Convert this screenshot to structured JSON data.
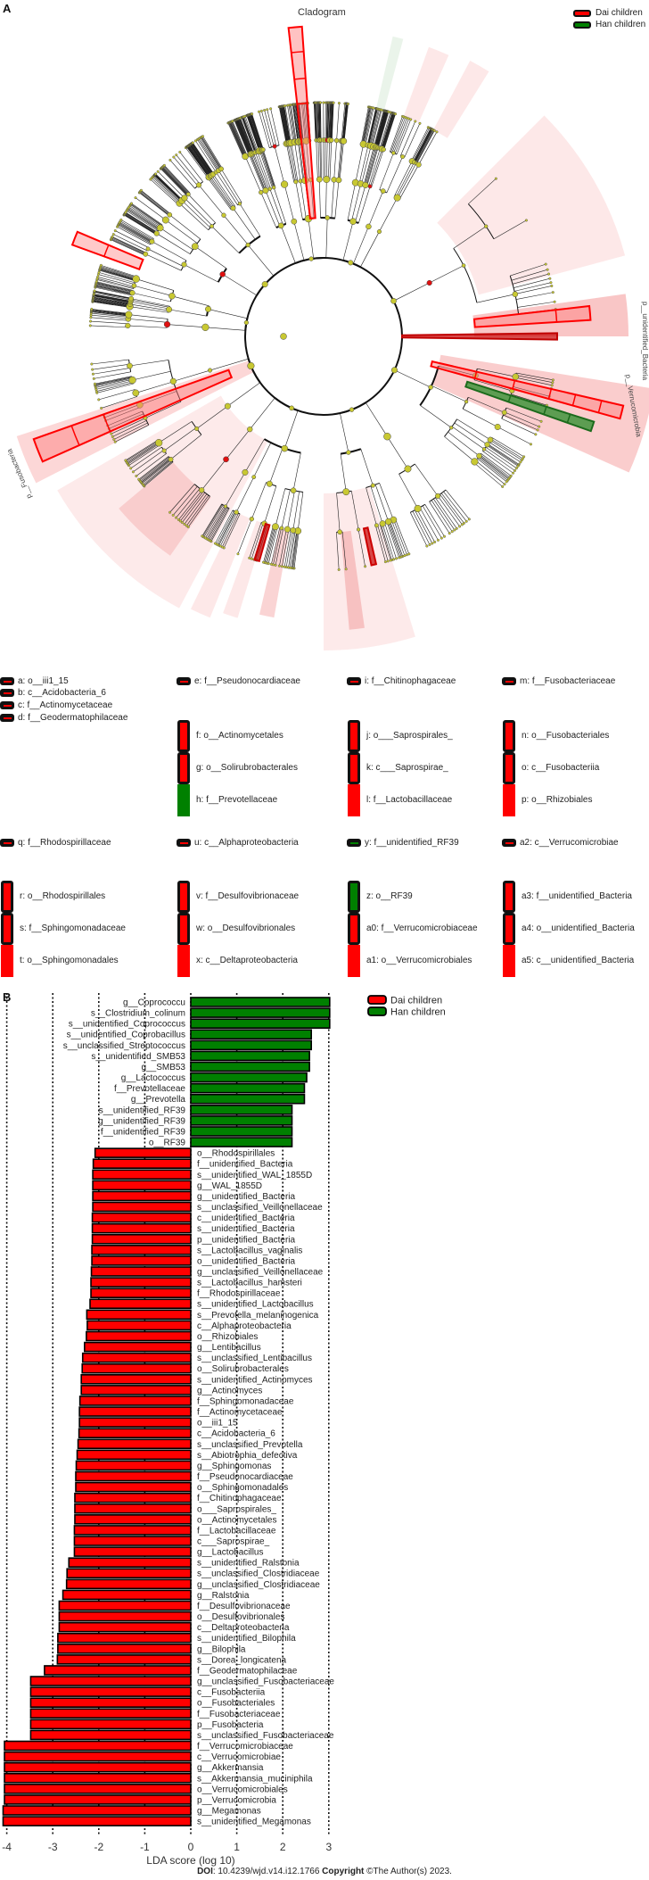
{
  "panel_a": {
    "letter": "A",
    "title": "Cladogram",
    "legend": [
      {
        "name": "Dai children",
        "color": "#ff0000"
      },
      {
        "name": "Han children",
        "color": "#008000"
      }
    ],
    "clade_labels": [
      "p__unidentified_Bacteria",
      "p__Verrucomicrobia",
      "p__Fusobacteria"
    ],
    "node_color": "#c8c832",
    "key": [
      {
        "key": "a",
        "label": "a: o__iii1_15",
        "color": "#ff0000",
        "style": "small"
      },
      {
        "key": "b",
        "label": "b: c__Acidobacteria_6",
        "color": "#ff0000",
        "style": "small"
      },
      {
        "key": "c",
        "label": "c: f__Actinomycetaceae",
        "color": "#ff0000",
        "style": "small"
      },
      {
        "key": "d",
        "label": "d: f__Geodermatophilaceae",
        "color": "#ff0000",
        "style": "small"
      },
      {
        "key": "e",
        "label": "e: f__Pseudonocardiaceae",
        "color": "#ff0000",
        "style": "small"
      },
      {
        "key": "f",
        "label": "f: o__Actinomycetales",
        "color": "#ff0000",
        "style": "bordered"
      },
      {
        "key": "g",
        "label": "g: o__Solirubrobacterales",
        "color": "#ff0000",
        "style": "bordered"
      },
      {
        "key": "h",
        "label": "h: f__Prevotellaceae",
        "color": "#008000",
        "style": "plain"
      },
      {
        "key": "i",
        "label": "i: f__Chitinophagaceae",
        "color": "#ff0000",
        "style": "small"
      },
      {
        "key": "j",
        "label": "j: o___Saprospirales_",
        "color": "#ff0000",
        "style": "bordered"
      },
      {
        "key": "k",
        "label": "k: c___Saprospirae_",
        "color": "#ff0000",
        "style": "bordered"
      },
      {
        "key": "l",
        "label": "l: f__Lactobacillaceae",
        "color": "#ff0000",
        "style": "plain"
      },
      {
        "key": "m",
        "label": "m: f__Fusobacteriaceae",
        "color": "#ff0000",
        "style": "small"
      },
      {
        "key": "n",
        "label": "n: o__Fusobacteriales",
        "color": "#ff0000",
        "style": "bordered"
      },
      {
        "key": "o",
        "label": "o: c__Fusobacteriia",
        "color": "#ff0000",
        "style": "bordered"
      },
      {
        "key": "p",
        "label": "p: o__Rhizobiales",
        "color": "#ff0000",
        "style": "plain"
      },
      {
        "key": "q",
        "label": "q: f__Rhodospirillaceae",
        "color": "#ff0000",
        "style": "small"
      },
      {
        "key": "r",
        "label": "r: o__Rhodospirillales",
        "color": "#ff0000",
        "style": "bordered"
      },
      {
        "key": "s",
        "label": "s: f__Sphingomonadaceae",
        "color": "#ff0000",
        "style": "bordered"
      },
      {
        "key": "t",
        "label": "t: o__Sphingomonadales",
        "color": "#ff0000",
        "style": "plain"
      },
      {
        "key": "u",
        "label": "u: c__Alphaproteobacteria",
        "color": "#ff0000",
        "style": "small"
      },
      {
        "key": "v",
        "label": "v: f__Desulfovibrionaceae",
        "color": "#ff0000",
        "style": "bordered"
      },
      {
        "key": "w",
        "label": "w: o__Desulfovibrionales",
        "color": "#ff0000",
        "style": "bordered"
      },
      {
        "key": "x",
        "label": "x: c__Deltaproteobacteria",
        "color": "#ff0000",
        "style": "plain"
      },
      {
        "key": "y",
        "label": "y: f__unidentified_RF39",
        "color": "#008000",
        "style": "small"
      },
      {
        "key": "z",
        "label": "z: o__RF39",
        "color": "#008000",
        "style": "bordered"
      },
      {
        "key": "a0",
        "label": "a0: f__Verrucomicrobiaceae",
        "color": "#ff0000",
        "style": "bordered"
      },
      {
        "key": "a1",
        "label": "a1: o__Verrucomicrobiales",
        "color": "#ff0000",
        "style": "plain"
      },
      {
        "key": "a2",
        "label": "a2: c__Verrucomicrobiae",
        "color": "#ff0000",
        "style": "small"
      },
      {
        "key": "a3",
        "label": "a3: f__unidentified_Bacteria",
        "color": "#ff0000",
        "style": "bordered"
      },
      {
        "key": "a4",
        "label": "a4: o__unidentified_Bacteria",
        "color": "#ff0000",
        "style": "bordered"
      },
      {
        "key": "a5",
        "label": "a5: c__unidentified_Bacteria",
        "color": "#ff0000",
        "style": "plain"
      }
    ]
  },
  "chart_data": {
    "type": "bar",
    "orientation": "horizontal",
    "panel_letter": "B",
    "xlabel": "LDA score (log 10)",
    "xlim": [
      -4,
      3
    ],
    "xticks": [
      "-4",
      "-3",
      "-2",
      "-1",
      "0",
      "1",
      "2",
      "3"
    ],
    "grid": "vertical dotted lines at each tick",
    "legend_position": "top-right",
    "series": [
      {
        "name": "Han children",
        "color": "#008000",
        "categories": [
          "g__Coprococcu",
          "s__Clostridium_colinum",
          "s__unidentified_Coprococcus",
          "s__unidentified_Coprobacillus",
          "s__unclassified_Streptococcus",
          "s__unidentified_SMB53",
          "g__SMB53",
          "g__Lactococcus",
          "f__Prevotellaceae",
          "g__Prevotella",
          "s__unidentified_RF39",
          "g__unidentified_RF39",
          "f__unidentified_RF39",
          "o__RF39"
        ],
        "values": [
          3.02,
          3.02,
          3.02,
          2.62,
          2.62,
          2.58,
          2.58,
          2.52,
          2.47,
          2.47,
          2.2,
          2.2,
          2.2,
          2.2
        ]
      },
      {
        "name": "Dai children",
        "color": "#ff0000",
        "categories": [
          "o__Rhodospirillales",
          "f__unidentified_Bacteria",
          "s__unidentified_WAL_1855D",
          "g__WAL_1855D",
          "g__unidentified_Bacteria",
          "s__unclassified_Veillonellaceae",
          "c__unidentified_Bacteria",
          "s__unidentified_Bacteria",
          "p__unidentified_Bacteria",
          "s__Lactobacillus_vaginalis",
          "o__unidentified_Bacteria",
          "g__unclassified_Veillonellaceae",
          "s__Lactobacillus_hamsteri",
          "f__Rhodospirillaceae",
          "s__unidentified_Lactobacillus",
          "s__Prevotella_melaninogenica",
          "c__Alphaproteobacteria",
          "o__Rhizobiales",
          "g__Lentibacillus",
          "s__unclassified_Lentibacillus",
          "o__Solirubrobacterales",
          "s__unidentified_Actinomyces",
          "g__Actinomyces",
          "f__Sphingomonadaceae",
          "f__Actinomycetaceae",
          "o__iii1_15",
          "c__Acidobacteria_6",
          "s__unclassified_Prevotella",
          "s__Abiotrophia_defectiva",
          "g__Sphingomonas",
          "f__Pseudonocardiaceae",
          "o__Sphingomonadales",
          "f__Chitinophagaceae",
          "o___Saprospirales_",
          "o__Actinomycetales",
          "f__Lactobacillaceae",
          "c___Saprospirae_",
          "g__Lactobacillus",
          "s__unidentified_Ralstonia",
          "s__unclassified_Clostridiaceae",
          "g__unclassified_Clostridiaceae",
          "g__Ralstonia",
          "f__Desulfovibrionaceae",
          "o__Desulfovibrionales",
          "c__Deltaproteobacteria",
          "s__unidentified_Bilophila",
          "g__Bilophila",
          "s__Dorea_longicatena",
          "f__Geodermatophilaceae",
          "g__unclassified_Fusobacteriaceae",
          "c__Fusobacteriia",
          "o__Fusobacteriales",
          "f__Fusobacteriaceae",
          "p__Fusobacteria",
          "s__unclassified_Fusobacteriaceae",
          "f__Verrucomicrobiaceae",
          "c__Verrucomicrobiae",
          "g__Akkermansia",
          "s__Akkermansia_muciniphila",
          "o__Verrucomicrobiales",
          "p__Verrucomicrobia",
          "g__Megamonas",
          "s__unidentified_Megamonas"
        ],
        "values": [
          -2.08,
          -2.12,
          -2.13,
          -2.13,
          -2.13,
          -2.13,
          -2.14,
          -2.14,
          -2.14,
          -2.15,
          -2.15,
          -2.16,
          -2.17,
          -2.17,
          -2.19,
          -2.26,
          -2.25,
          -2.27,
          -2.31,
          -2.35,
          -2.36,
          -2.38,
          -2.38,
          -2.41,
          -2.42,
          -2.42,
          -2.43,
          -2.45,
          -2.47,
          -2.49,
          -2.5,
          -2.5,
          -2.52,
          -2.52,
          -2.52,
          -2.53,
          -2.53,
          -2.53,
          -2.65,
          -2.69,
          -2.7,
          -2.78,
          -2.86,
          -2.86,
          -2.86,
          -2.89,
          -2.89,
          -2.9,
          -3.18,
          -3.48,
          -3.48,
          -3.48,
          -3.48,
          -3.48,
          -3.48,
          -4.05,
          -4.05,
          -4.05,
          -4.05,
          -4.05,
          -4.05,
          -4.08,
          -4.08
        ]
      }
    ]
  },
  "footer": {
    "doi_label": "DOI",
    "doi_value": ": 10.4239/wjd.v14.i12.1766 ",
    "copyright_label": "Copyright",
    "copyright_value": " ©The Author(s) 2023."
  }
}
